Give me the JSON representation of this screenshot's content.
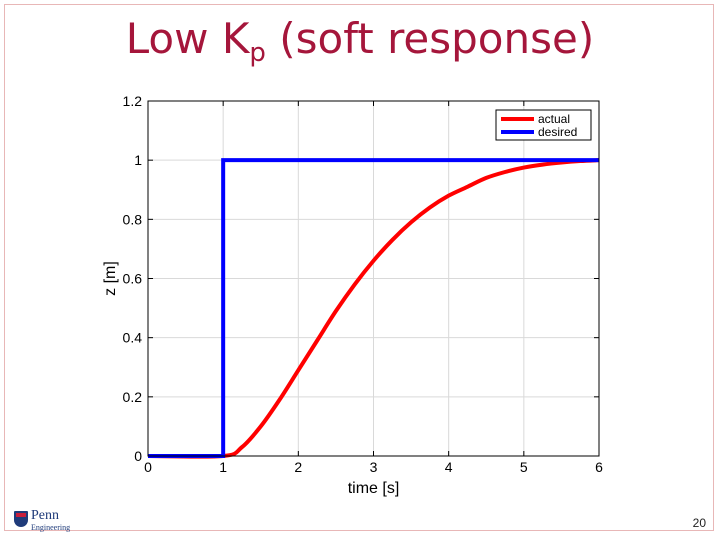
{
  "slide": {
    "title_main": "Low K",
    "title_subscript": "p",
    "title_rest": " (soft response)",
    "page_number": "20",
    "logo": {
      "word": "Penn",
      "sub": "Engineering"
    }
  },
  "colors": {
    "title": "#a5163b",
    "actual": "#ff0000",
    "desired": "#0000ff"
  },
  "chart_data": {
    "type": "line",
    "xlabel": "time [s]",
    "ylabel": "z [m]",
    "xlim": [
      0,
      6
    ],
    "ylim": [
      0,
      1.2
    ],
    "xticks": [
      "0",
      "1",
      "2",
      "3",
      "4",
      "5",
      "6"
    ],
    "yticks": [
      "0",
      "0.2",
      "0.4",
      "0.6",
      "0.8",
      "1",
      "1.2"
    ],
    "grid": true,
    "legend_position": "top-right",
    "series": [
      {
        "name": "actual",
        "color": "#ff0000",
        "x": [
          0,
          1,
          1.25,
          1.5,
          1.75,
          2,
          2.25,
          2.5,
          2.75,
          3,
          3.25,
          3.5,
          3.75,
          4,
          4.25,
          4.5,
          4.75,
          5,
          5.25,
          5.5,
          5.75,
          6
        ],
        "y": [
          0,
          0,
          0.03,
          0.1,
          0.19,
          0.29,
          0.39,
          0.49,
          0.58,
          0.66,
          0.73,
          0.79,
          0.84,
          0.88,
          0.91,
          0.94,
          0.96,
          0.975,
          0.985,
          0.992,
          0.997,
          1.0
        ]
      },
      {
        "name": "desired",
        "color": "#0000ff",
        "x": [
          0,
          1,
          1,
          6
        ],
        "y": [
          0,
          0,
          1,
          1
        ]
      }
    ]
  }
}
